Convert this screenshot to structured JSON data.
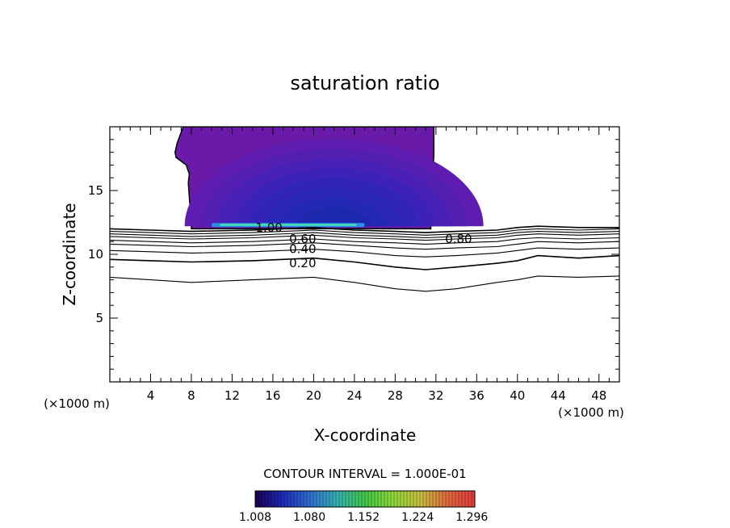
{
  "chart_data": {
    "type": "contour",
    "title": "saturation ratio",
    "xlabel": "X-coordinate",
    "ylabel": "Z-coordinate",
    "x_unit": "(×1000 m)",
    "xlim": [
      0,
      50
    ],
    "ylim": [
      0,
      20
    ],
    "x_ticks": [
      4,
      8,
      12,
      16,
      20,
      24,
      28,
      32,
      36,
      40,
      44,
      48
    ],
    "y_ticks": [
      5,
      10,
      15
    ],
    "contour_interval_label": "CONTOUR INTERVAL = 1.000E-01",
    "contour_levels": [
      {
        "level": 0.1,
        "label": "",
        "x": [
          0,
          4,
          8,
          14,
          20,
          24,
          28,
          31,
          34,
          38,
          40,
          42,
          46,
          50
        ],
        "z": [
          8.2,
          8.0,
          7.8,
          8.0,
          8.2,
          7.8,
          7.3,
          7.1,
          7.3,
          7.8,
          8.0,
          8.3,
          8.2,
          8.3
        ]
      },
      {
        "level": 0.2,
        "label": "0.20",
        "x": [
          0,
          4,
          8,
          14,
          20,
          24,
          28,
          31,
          34,
          38,
          40,
          42,
          46,
          50
        ],
        "z": [
          9.6,
          9.5,
          9.4,
          9.5,
          9.7,
          9.4,
          9.0,
          8.8,
          9.0,
          9.3,
          9.5,
          9.9,
          9.7,
          9.9
        ]
      },
      {
        "level": 0.3,
        "label": "",
        "x": [
          0,
          4,
          8,
          14,
          20,
          24,
          28,
          31,
          34,
          38,
          40,
          42,
          46,
          50
        ],
        "z": [
          10.3,
          10.2,
          10.1,
          10.2,
          10.4,
          10.2,
          9.9,
          9.8,
          9.9,
          10.1,
          10.3,
          10.5,
          10.4,
          10.5
        ]
      },
      {
        "level": 0.4,
        "label": "0.40",
        "x": [
          0,
          4,
          8,
          14,
          20,
          24,
          28,
          31,
          34,
          38,
          40,
          42,
          46,
          50
        ],
        "z": [
          10.8,
          10.7,
          10.6,
          10.7,
          10.9,
          10.7,
          10.5,
          10.4,
          10.5,
          10.6,
          10.8,
          11.0,
          10.9,
          11.0
        ]
      },
      {
        "level": 0.5,
        "label": "0.50",
        "x": [
          0,
          4,
          8,
          14,
          20,
          24,
          28,
          31,
          34,
          38,
          40,
          42,
          46,
          50
        ],
        "z": [
          11.1,
          11.0,
          10.9,
          11.0,
          11.2,
          11.0,
          10.9,
          10.8,
          10.9,
          11.0,
          11.2,
          11.3,
          11.2,
          11.3
        ]
      },
      {
        "level": 0.6,
        "label": "0.60",
        "x": [
          0,
          4,
          8,
          14,
          20,
          24,
          28,
          31,
          34,
          38,
          40,
          42,
          46,
          50
        ],
        "z": [
          11.4,
          11.3,
          11.2,
          11.3,
          11.5,
          11.3,
          11.2,
          11.1,
          11.2,
          11.3,
          11.5,
          11.6,
          11.5,
          11.6
        ]
      },
      {
        "level": 0.7,
        "label": "",
        "x": [
          0,
          4,
          8,
          14,
          20,
          24,
          28,
          31,
          34,
          38,
          40,
          42,
          46,
          50
        ],
        "z": [
          11.6,
          11.5,
          11.4,
          11.5,
          11.7,
          11.5,
          11.4,
          11.3,
          11.4,
          11.5,
          11.7,
          11.8,
          11.7,
          11.8
        ]
      },
      {
        "level": 0.8,
        "label": "0.80",
        "x": [
          0,
          4,
          8,
          14,
          20,
          24,
          28,
          31,
          34,
          38,
          40,
          42,
          46,
          50
        ],
        "z": [
          11.8,
          11.7,
          11.6,
          11.7,
          11.9,
          11.7,
          11.6,
          11.5,
          11.6,
          11.7,
          11.9,
          12.0,
          11.9,
          12.0
        ]
      },
      {
        "level": 0.9,
        "label": "",
        "x": [
          0,
          4,
          8,
          14,
          20,
          24,
          28,
          31,
          34,
          38,
          40,
          42,
          46,
          50
        ],
        "z": [
          12.0,
          11.9,
          11.8,
          11.9,
          12.1,
          11.9,
          11.8,
          11.7,
          11.8,
          11.9,
          12.1,
          12.2,
          12.1,
          12.1
        ]
      }
    ],
    "contour_labels": [
      {
        "text": "1.00",
        "x": 14.3,
        "z": 12.1
      },
      {
        "text": "0.80",
        "x": 32.9,
        "z": 11.2
      },
      {
        "text": "0.60",
        "x": 17.6,
        "z": 11.2
      },
      {
        "text": "0.40",
        "x": 17.6,
        "z": 10.4
      },
      {
        "text": "0.20",
        "x": 17.6,
        "z": 9.3
      }
    ],
    "filled_region": {
      "description_level": "> 1.0",
      "boundary_x": [
        7.2,
        6.6,
        6.4,
        6.5,
        7.5,
        7.8,
        7.7,
        7.8,
        7.9,
        8.0,
        8.0,
        8.0,
        31.5,
        31.6,
        31.7,
        31.8,
        31.8
      ],
      "boundary_z": [
        20.0,
        18.7,
        18.0,
        17.6,
        17.0,
        16.3,
        15.6,
        14.5,
        13.5,
        12.7,
        12.4,
        12.0,
        12.0,
        14.0,
        16.0,
        18.0,
        20.0
      ],
      "center_x": 22.0,
      "center_z": 12.2,
      "max_values_at_base_x": [
        10,
        25
      ]
    },
    "colorbar": {
      "min": 1.008,
      "max": 1.3,
      "ticks": [
        "1.008",
        "1.080",
        "1.152",
        "1.224",
        "1.296"
      ],
      "colors": [
        "#1a0050",
        "#1e2ab8",
        "#2f6fd0",
        "#35b2b0",
        "#42c848",
        "#8ed83a",
        "#c8c040",
        "#e06a40",
        "#e03a3a"
      ]
    }
  }
}
